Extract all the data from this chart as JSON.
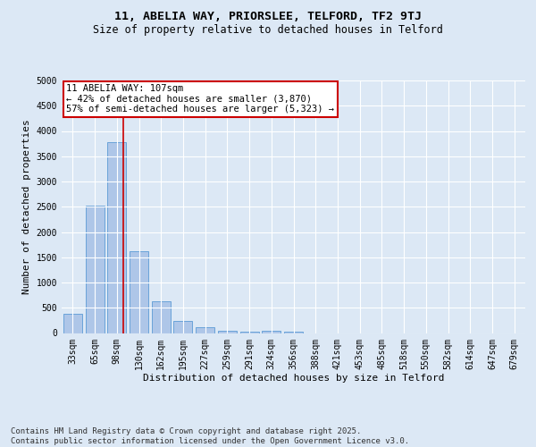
{
  "title1": "11, ABELIA WAY, PRIORSLEE, TELFORD, TF2 9TJ",
  "title2": "Size of property relative to detached houses in Telford",
  "xlabel": "Distribution of detached houses by size in Telford",
  "ylabel": "Number of detached properties",
  "categories": [
    "33sqm",
    "65sqm",
    "98sqm",
    "130sqm",
    "162sqm",
    "195sqm",
    "227sqm",
    "259sqm",
    "291sqm",
    "324sqm",
    "356sqm",
    "388sqm",
    "421sqm",
    "453sqm",
    "485sqm",
    "518sqm",
    "550sqm",
    "582sqm",
    "614sqm",
    "647sqm",
    "679sqm"
  ],
  "values": [
    375,
    2530,
    3780,
    1625,
    625,
    240,
    110,
    50,
    30,
    50,
    20,
    0,
    0,
    0,
    0,
    0,
    0,
    0,
    0,
    0,
    0
  ],
  "bar_color": "#aec6e8",
  "bar_edge_color": "#5b9bd5",
  "red_line_x": 2.3,
  "ylim": [
    0,
    5000
  ],
  "yticks": [
    0,
    500,
    1000,
    1500,
    2000,
    2500,
    3000,
    3500,
    4000,
    4500,
    5000
  ],
  "annotation_text": "11 ABELIA WAY: 107sqm\n← 42% of detached houses are smaller (3,870)\n57% of semi-detached houses are larger (5,323) →",
  "annotation_box_color": "#ffffff",
  "annotation_box_edge": "#cc0000",
  "bg_color": "#dce8f5",
  "plot_bg_color": "#dce8f5",
  "grid_color": "#ffffff",
  "footnote": "Contains HM Land Registry data © Crown copyright and database right 2025.\nContains public sector information licensed under the Open Government Licence v3.0.",
  "red_line_color": "#cc0000",
  "title1_fontsize": 9.5,
  "title2_fontsize": 8.5,
  "axis_label_fontsize": 8,
  "tick_fontsize": 7,
  "annotation_fontsize": 7.5,
  "footnote_fontsize": 6.5
}
